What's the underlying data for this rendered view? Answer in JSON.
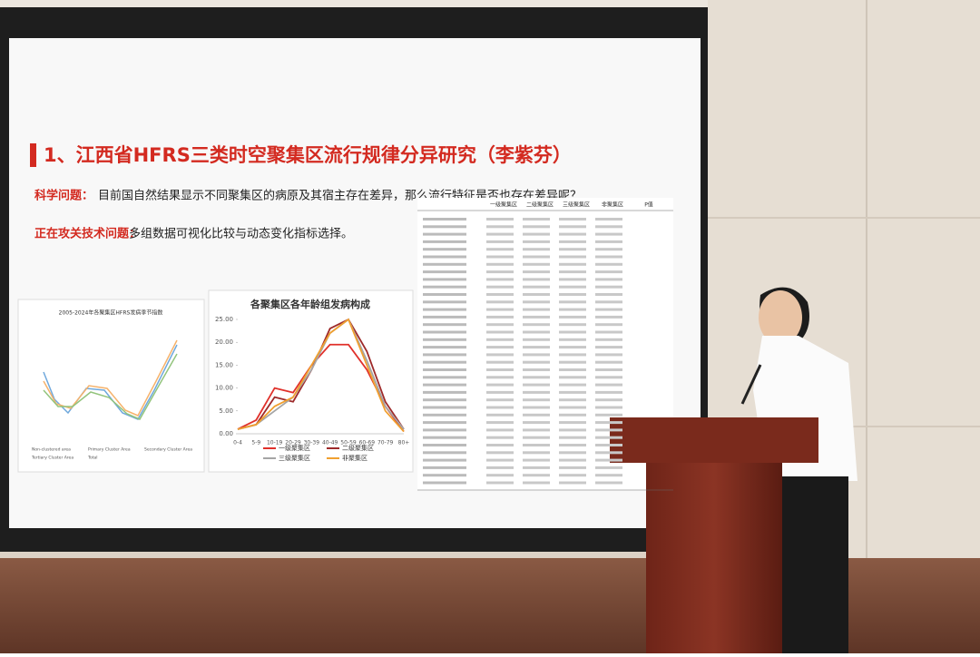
{
  "slide": {
    "title": "1、江西省HFRS三类时空聚集区流行规律分异研究（李紫芬）",
    "question_label": "科学问题：",
    "question": "目前国自然结果显示不同聚集区的病原及其宿主存在差异，那么流行特征是否也存在差异呢？",
    "issue_label": "正在攻关技术问题：",
    "issue": "多组数据可视化比较与动态变化指标选择。",
    "left_chart": {
      "title": "2005-2024年各聚集区HFRS发病季节指数",
      "legend": [
        "Non-clustered area",
        "Primary Cluster Area",
        "Secondary Cluster Area",
        "Tertiary Cluster Area",
        "Total"
      ]
    },
    "table": {
      "headers": [
        "一级聚集区",
        "二级聚集区",
        "三级聚集区",
        "非聚集区",
        "P值"
      ]
    }
  },
  "chart_data": {
    "type": "line",
    "title": "各聚集区各年龄组发病构成",
    "categories": [
      "0-4",
      "5-9",
      "10-19",
      "20-29",
      "30-39",
      "40-49",
      "50-59",
      "60-69",
      "70-79",
      "80+"
    ],
    "series": [
      {
        "name": "一级聚集区",
        "color": "#e0302a",
        "values": [
          1,
          3,
          10,
          9,
          15,
          19.5,
          19.5,
          14,
          6,
          0.5
        ]
      },
      {
        "name": "二级聚集区",
        "color": "#9e2a2a",
        "values": [
          1,
          2,
          8,
          7,
          14,
          23,
          25,
          18,
          7,
          1
        ]
      },
      {
        "name": "三级聚集区",
        "color": "#a5a5a5",
        "values": [
          1,
          2,
          5,
          8,
          14,
          22,
          25,
          16,
          6,
          1
        ]
      },
      {
        "name": "非聚集区",
        "color": "#f0a030",
        "values": [
          1,
          2,
          6,
          8,
          15,
          22,
          25,
          15,
          5,
          0.5
        ]
      }
    ],
    "ylim": [
      0,
      25
    ],
    "yticks": [
      {
        "value": 0,
        "label": "0.00"
      },
      {
        "value": 5,
        "label": "5.00"
      },
      {
        "value": 10,
        "label": "10.00"
      },
      {
        "value": 15,
        "label": "15.00"
      },
      {
        "value": 20,
        "label": "20.00"
      },
      {
        "value": 25,
        "label": "25.00"
      }
    ],
    "grid": false
  }
}
